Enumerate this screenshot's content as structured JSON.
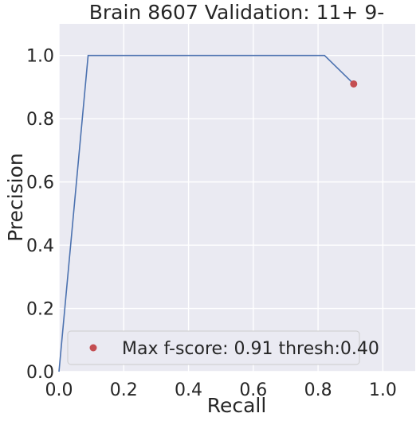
{
  "chart_data": {
    "type": "line",
    "title": "Brain 8607 Validation: 11+ 9-",
    "xlabel": "Recall",
    "ylabel": "Precision",
    "xlim": [
      0,
      1.1
    ],
    "ylim": [
      0,
      1.1
    ],
    "xticks": [
      "0.0",
      "0.2",
      "0.4",
      "0.6",
      "0.8",
      "1.0"
    ],
    "yticks": [
      "0.0",
      "0.2",
      "0.4",
      "0.6",
      "0.8",
      "1.0"
    ],
    "grid": true,
    "legend_position": "lower-left",
    "series": [
      {
        "x": [
          0.0,
          0.09,
          0.82,
          0.91
        ],
        "y": [
          0.0,
          1.0,
          1.0,
          0.91
        ],
        "color": "#4c72b0"
      }
    ],
    "marker": {
      "name": "Max f-score: 0.91 thresh:0.40",
      "x": 0.91,
      "y": 0.91,
      "color": "#c44e52"
    },
    "background_color": "#eaeaf2"
  }
}
